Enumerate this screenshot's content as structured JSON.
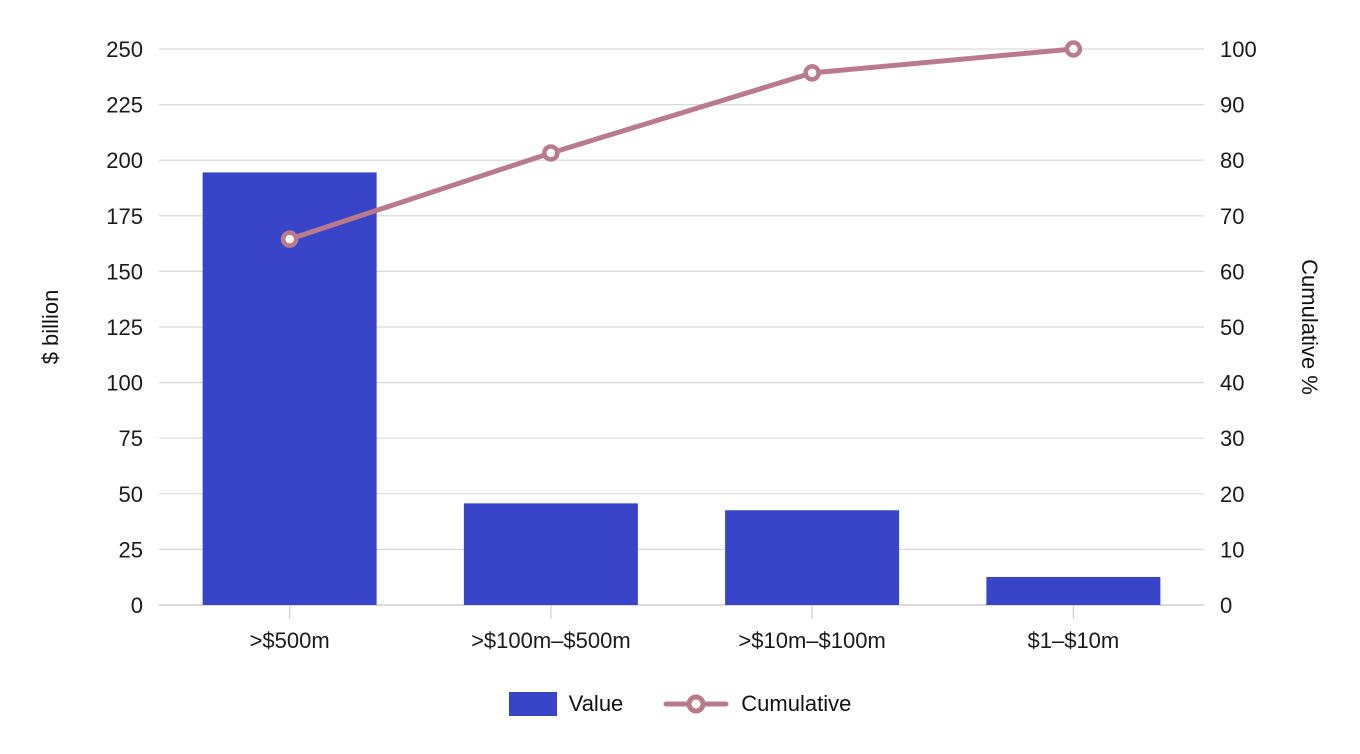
{
  "chart_data": {
    "type": "bar",
    "combo": "bar+line (pareto)",
    "title": "",
    "categories": [
      ">$500m",
      ">$100m–$500m",
      ">$10m–$100m",
      "$1–$10m"
    ],
    "series": [
      {
        "name": "Value",
        "type": "bar",
        "axis": "left",
        "color": "#3845c9",
        "values": [
          194.5,
          45.7,
          42.6,
          12.6
        ]
      },
      {
        "name": "Cumulative",
        "type": "line",
        "axis": "right",
        "color": "#b97a8e",
        "values": [
          65.8,
          81.3,
          95.7,
          100
        ]
      }
    ],
    "ylabel": "$ billion",
    "ylabel_right": "Cumulative %",
    "xlabel": "",
    "ylim": [
      0,
      250
    ],
    "ylim_right": [
      0,
      100
    ],
    "yticks": [
      0,
      25,
      50,
      75,
      100,
      125,
      150,
      175,
      200,
      225,
      250
    ],
    "yticks_right": [
      0,
      10,
      20,
      30,
      40,
      50,
      60,
      70,
      80,
      90,
      100
    ],
    "grid": true,
    "legend_position": "bottom"
  },
  "legend": {
    "items": [
      {
        "label": "Value",
        "color": "#3845c9"
      },
      {
        "label": "Cumulative",
        "color": "#b97a8e"
      }
    ]
  },
  "axes": {
    "left_title": "$ billion",
    "right_title": "Cumulative %"
  }
}
